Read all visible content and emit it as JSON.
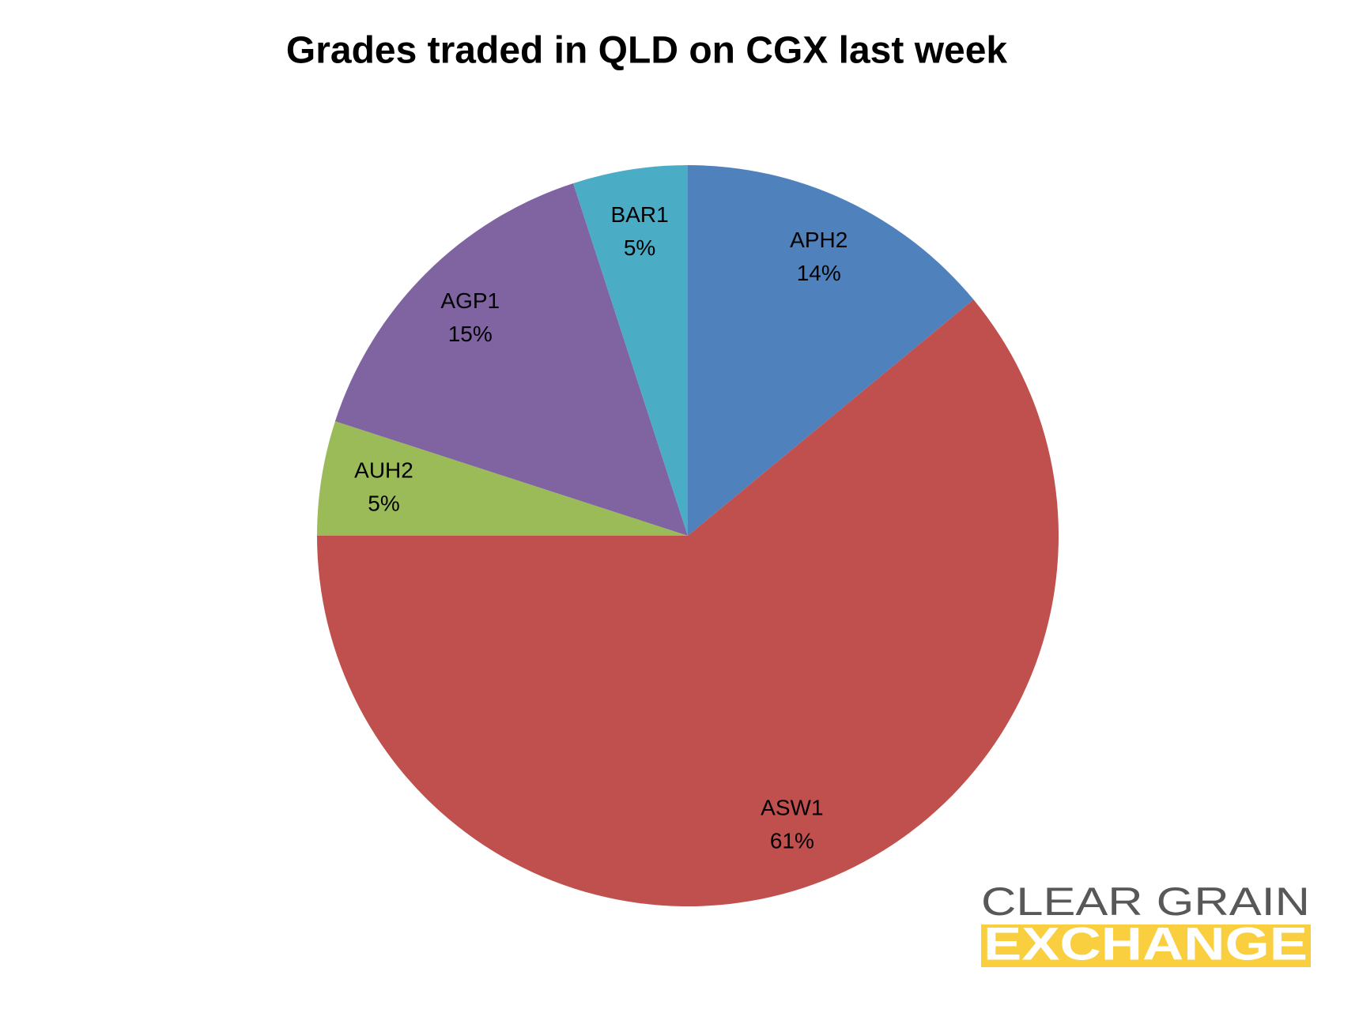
{
  "chart_data": {
    "type": "pie",
    "title": "Grades traded in QLD on CGX last week",
    "categories": [
      "APH2",
      "ASW1",
      "AUH2",
      "AGP1",
      "BAR1"
    ],
    "values": [
      14,
      61,
      5,
      15,
      5
    ],
    "value_labels": [
      "14%",
      "61%",
      "5%",
      "15%",
      "5%"
    ],
    "colors": [
      "#4f81bd",
      "#c0504d",
      "#9bbb59",
      "#8064a2",
      "#4bacc6"
    ]
  },
  "logo": {
    "line1": "CLEAR GRAIN",
    "line2": "EXCHANGE"
  }
}
